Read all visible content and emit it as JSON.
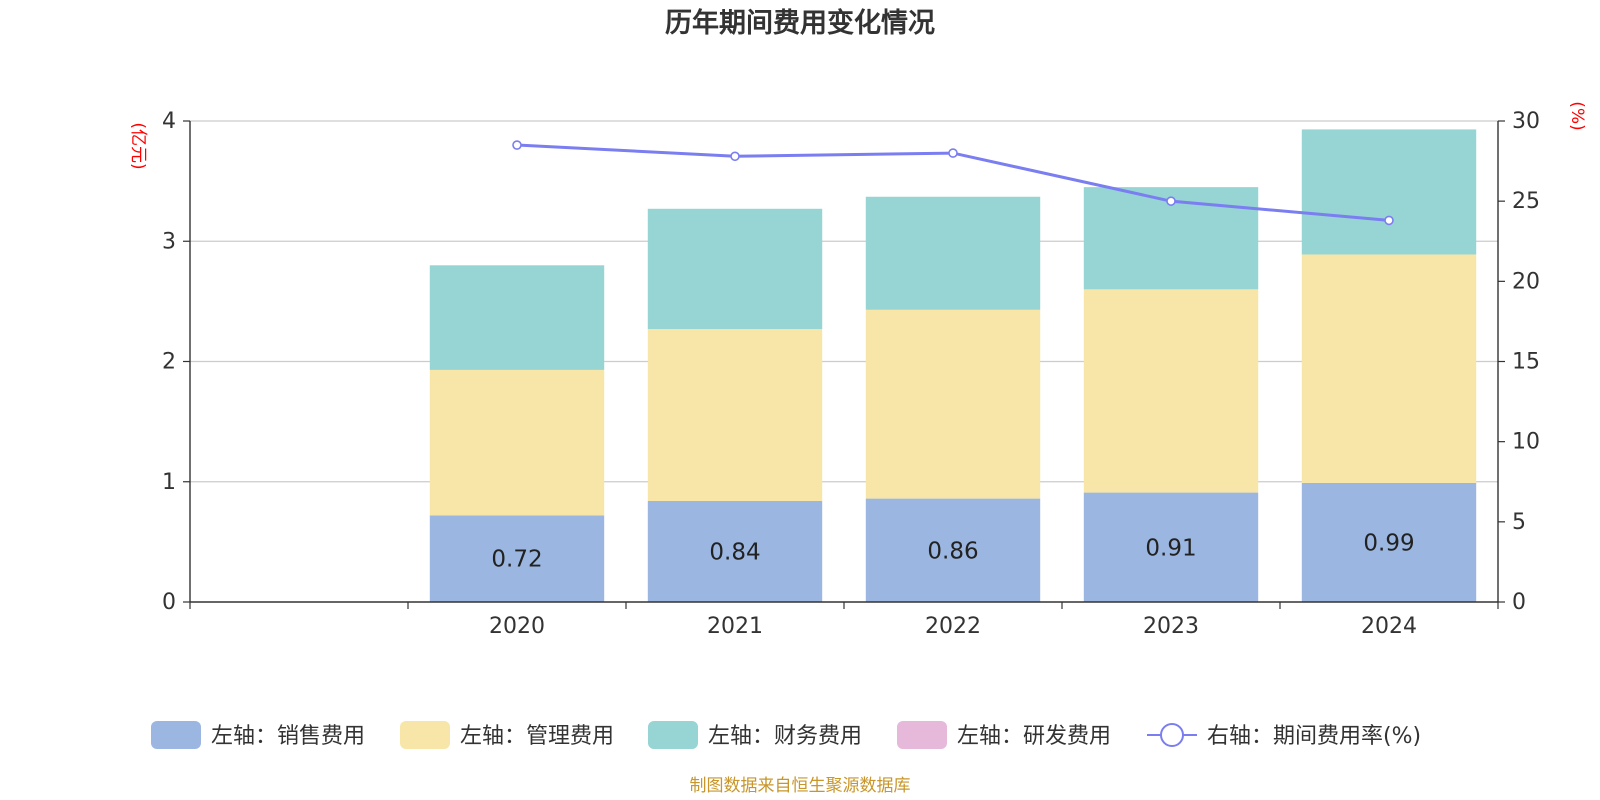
{
  "chart_data": {
    "type": "bar",
    "title": "历年期间费用变化情况",
    "categories": [
      "",
      "2020",
      "2021",
      "2022",
      "2023",
      "2024"
    ],
    "left_axis": {
      "unit": "(亿元)",
      "range": [
        0,
        4
      ],
      "ticks": [
        "0",
        "1",
        "2",
        "3",
        "4"
      ]
    },
    "right_axis": {
      "unit": "(%)",
      "range": [
        0,
        30
      ],
      "ticks": [
        "0",
        "5",
        "10",
        "15",
        "20",
        "25",
        "30"
      ]
    },
    "series": [
      {
        "name": "左轴：销售费用",
        "type": "bar",
        "stack": "expense",
        "axis": "left",
        "color": "#9bb7e1",
        "values": [
          null,
          0.72,
          0.84,
          0.86,
          0.91,
          0.99
        ],
        "show_labels": true
      },
      {
        "name": "左轴：管理费用",
        "type": "bar",
        "stack": "expense",
        "axis": "left",
        "color": "#f7e6a7",
        "values": [
          null,
          1.21,
          1.43,
          1.57,
          1.69,
          1.9
        ]
      },
      {
        "name": "左轴：财务费用",
        "type": "bar",
        "stack": "expense",
        "axis": "left",
        "color": "#97d4d4",
        "values": [
          null,
          0.87,
          1.0,
          0.94,
          0.85,
          1.04
        ]
      },
      {
        "name": "左轴：研发费用",
        "type": "bar",
        "stack": "expense",
        "axis": "left",
        "color": "#e6b8d9",
        "values": [
          null,
          null,
          null,
          null,
          null,
          null
        ]
      },
      {
        "name": "右轴：期间费用率(%)",
        "type": "line",
        "axis": "right",
        "color": "#7a7ef0",
        "values": [
          null,
          28.5,
          27.8,
          28.0,
          25.0,
          23.8
        ]
      }
    ],
    "grid": true,
    "legend_position": "bottom"
  },
  "source": "制图数据来自恒生聚源数据库"
}
